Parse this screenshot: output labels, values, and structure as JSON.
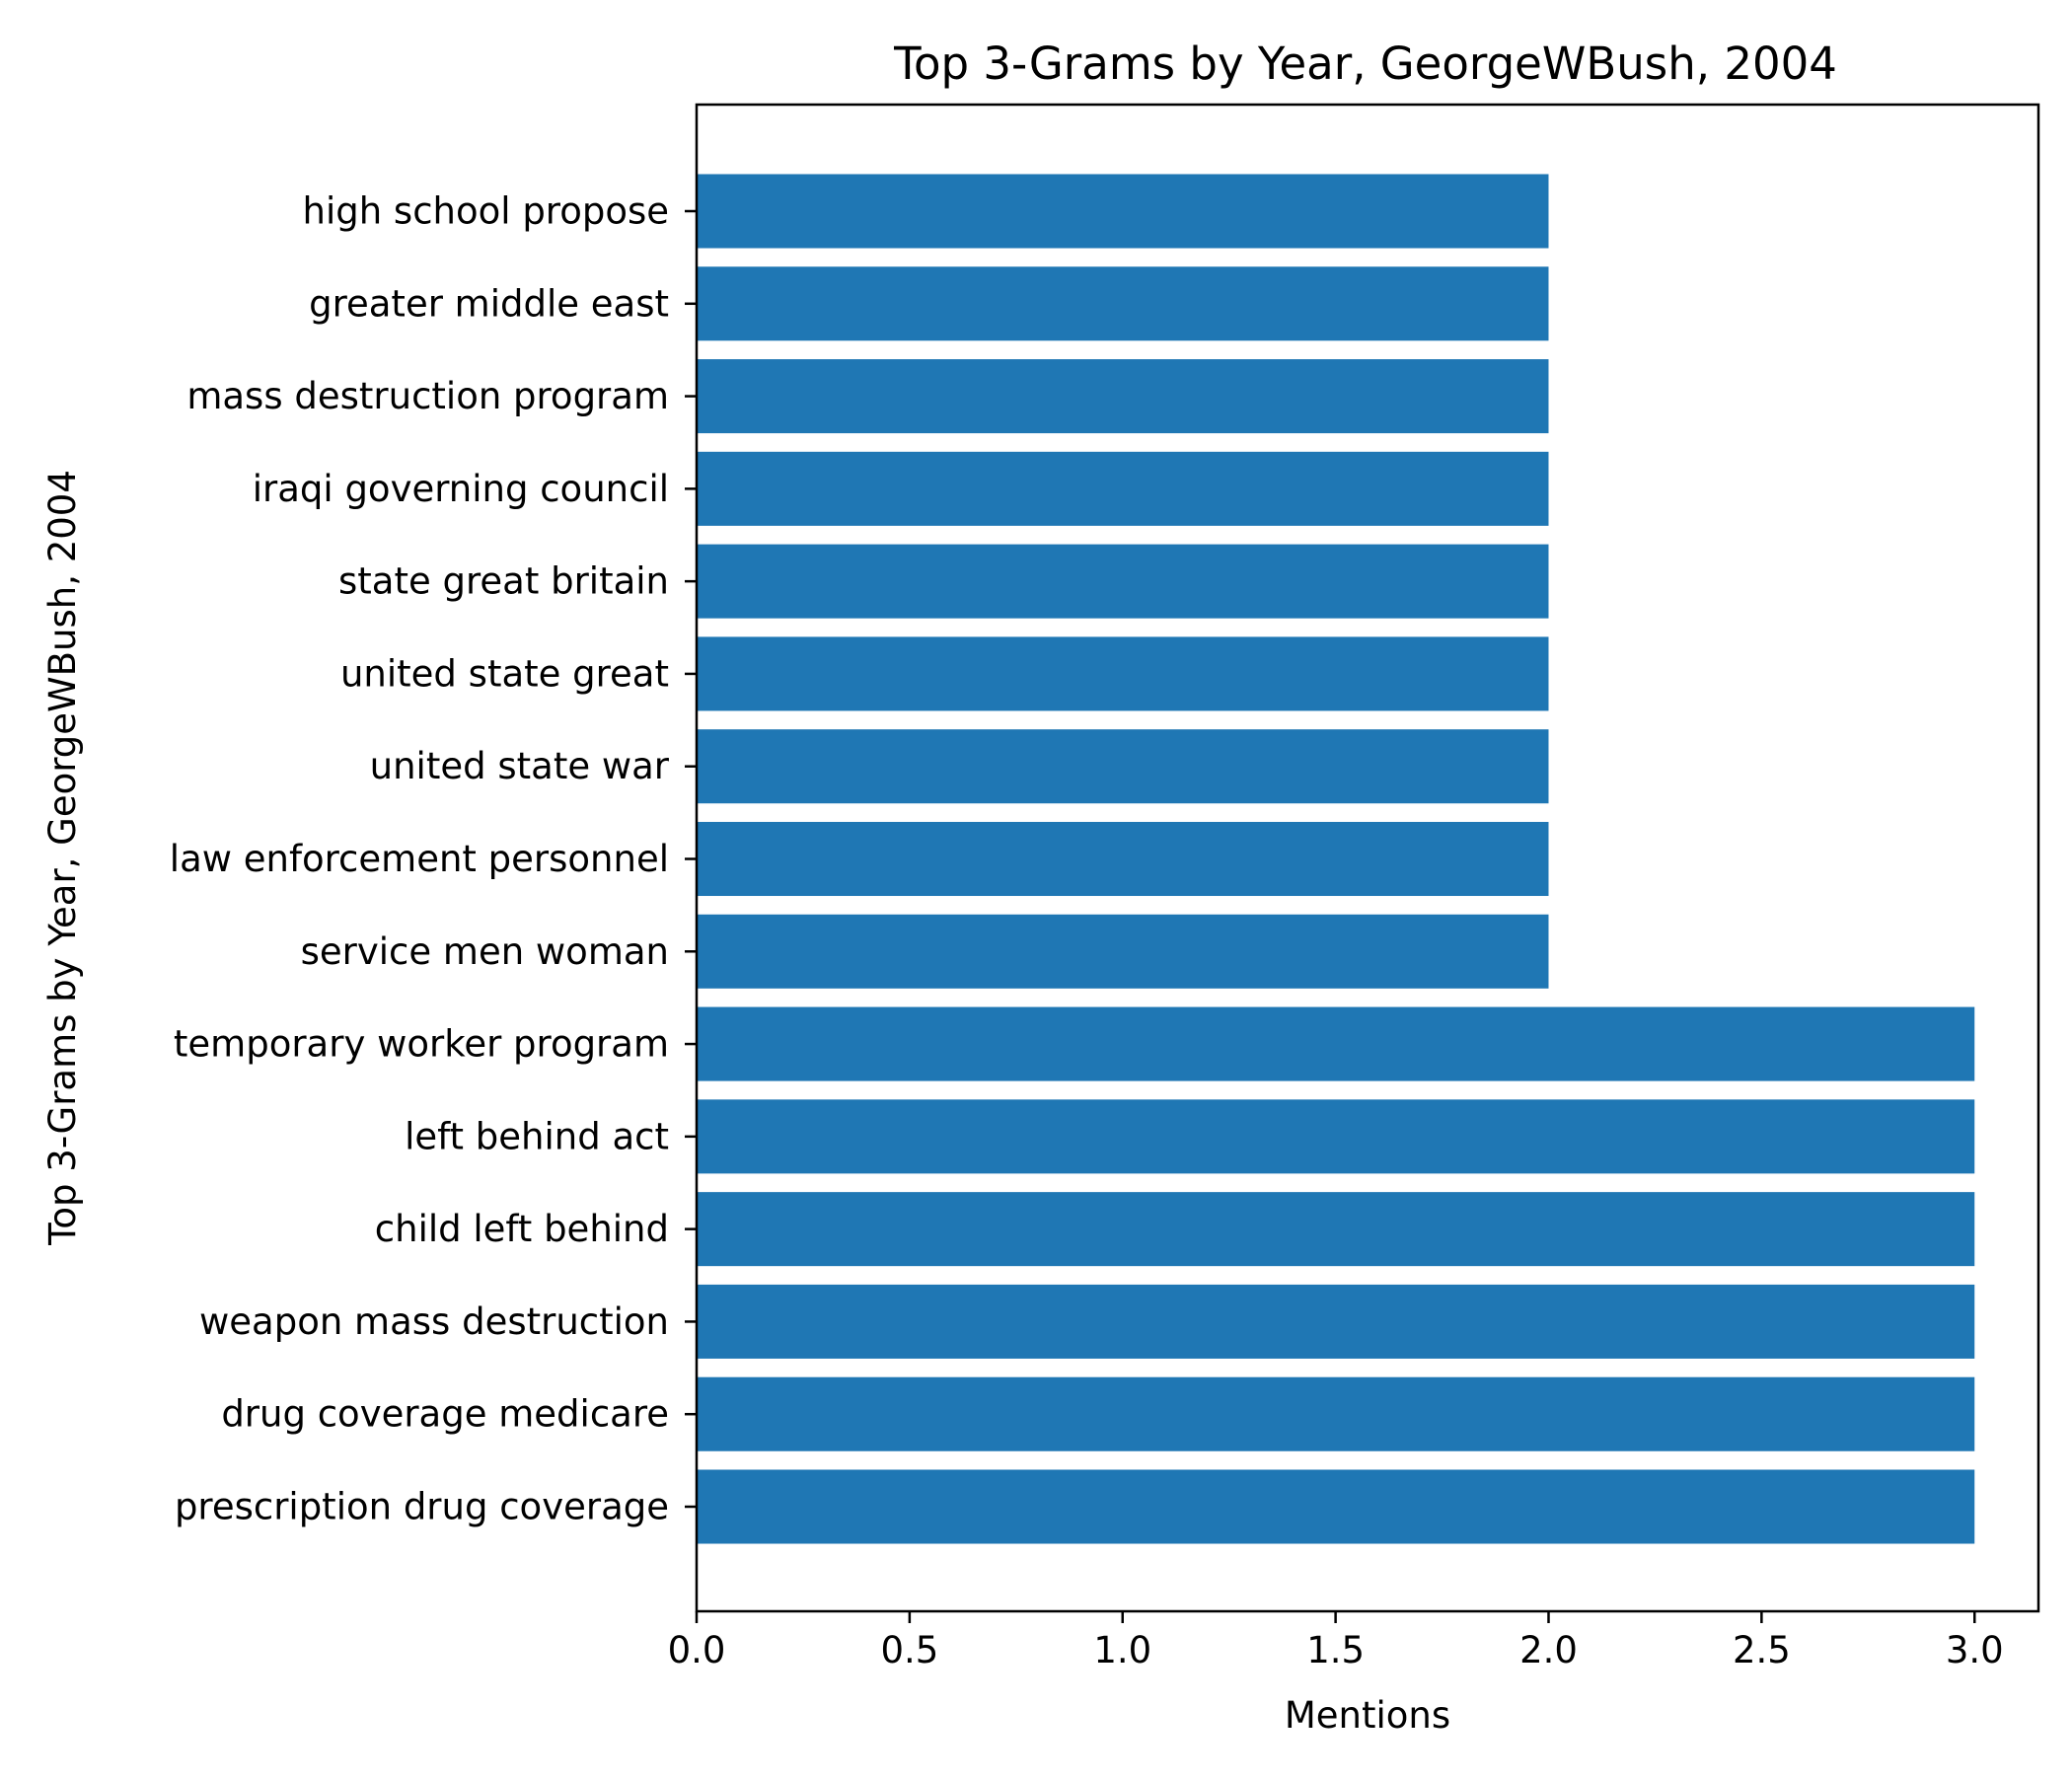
{
  "chart_data": {
    "type": "bar",
    "orientation": "horizontal",
    "title": "Top 3-Grams by Year, GeorgeWBush, 2004",
    "xlabel": "Mentions",
    "ylabel": "Top 3-Grams by Year, GeorgeWBush, 2004",
    "xlim": [
      0,
      3.15
    ],
    "xticks": [
      "0.0",
      "0.5",
      "1.0",
      "1.5",
      "2.0",
      "2.5",
      "3.0"
    ],
    "grid": false,
    "legend": "none",
    "bar_color": "#1f77b4",
    "categories": [
      "prescription drug coverage",
      "drug coverage medicare",
      "weapon mass destruction",
      "child left behind",
      "left behind act",
      "temporary worker program",
      "service men woman",
      "law enforcement personnel",
      "united state war",
      "united state great",
      "state great britain",
      "iraqi governing council",
      "mass destruction program",
      "greater middle east",
      "high school propose"
    ],
    "values": [
      3,
      3,
      3,
      3,
      3,
      3,
      2,
      2,
      2,
      2,
      2,
      2,
      2,
      2,
      2
    ]
  }
}
